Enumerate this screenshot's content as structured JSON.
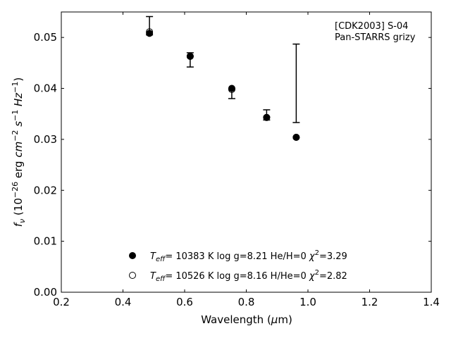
{
  "chart_data": {
    "type": "scatter",
    "title": "",
    "annotation": [
      "[CDK2003] S-04",
      "Pan-STARRS grizy"
    ],
    "xlabel": {
      "main": "Wavelength (",
      "mu": "μ",
      "rest": "m)"
    },
    "ylabel": {
      "f": "f",
      "nu": "ν",
      "open": " (10",
      "exp1": "−26",
      "mid1": " erg ",
      "cm": "cm",
      "exp2": "−2",
      "s": " s",
      "exp3": "−1",
      "hz": " Hz",
      "exp4": "−1",
      "close": ")"
    },
    "xlim": [
      0.2,
      1.4
    ],
    "ylim": [
      0.0,
      0.055
    ],
    "xticks": [
      0.2,
      0.4,
      0.6,
      0.8,
      1.0,
      1.2,
      1.4
    ],
    "xtick_labels": [
      "0.2",
      "0.4",
      "0.6",
      "0.8",
      "1.0",
      "1.2",
      "1.4"
    ],
    "yticks": [
      0.0,
      0.01,
      0.02,
      0.03,
      0.04,
      0.05
    ],
    "ytick_labels": [
      "0.00",
      "0.01",
      "0.02",
      "0.03",
      "0.04",
      "0.05"
    ],
    "observed": [
      {
        "x": 0.486,
        "lo": 0.0505,
        "hi": 0.0541
      },
      {
        "x": 0.618,
        "lo": 0.0442,
        "hi": 0.047
      },
      {
        "x": 0.753,
        "lo": 0.038,
        "hi": 0.04
      },
      {
        "x": 0.866,
        "lo": 0.0338,
        "hi": 0.0358
      },
      {
        "x": 0.962,
        "lo": 0.0333,
        "hi": 0.0487
      }
    ],
    "series": [
      {
        "name": "T_eff= 10383 K log g=8.21 He/H=0 χ²=3.29",
        "marker": "filled",
        "x": [
          0.486,
          0.618,
          0.753,
          0.866,
          0.962
        ],
        "y": [
          0.0508,
          0.0463,
          0.04,
          0.0343,
          0.0304
        ]
      },
      {
        "name": "T_eff= 10526 K log g=8.16 H/He=0 χ²=2.82",
        "marker": "open",
        "x": [
          0.486,
          0.618,
          0.753,
          0.866,
          0.962
        ],
        "y": [
          0.0511,
          0.0463,
          0.0398,
          0.0343,
          0.0304
        ]
      }
    ],
    "legend": {
      "placement": "bottom-center",
      "entries": [
        {
          "t": "T",
          "sub": "eff",
          "mid": "= 10383 K  log g=8.21  He/H=0  ",
          "chi": "χ",
          "sup": "2",
          "tail": "=3.29"
        },
        {
          "t": "T",
          "sub": "eff",
          "mid": "= 10526 K  log g=8.16  H/He=0  ",
          "chi": "χ",
          "sup": "2",
          "tail": "=2.82"
        }
      ]
    },
    "grid": false,
    "colors": {
      "marker": "#000000",
      "axis": "#000000",
      "background": "#ffffff"
    }
  }
}
